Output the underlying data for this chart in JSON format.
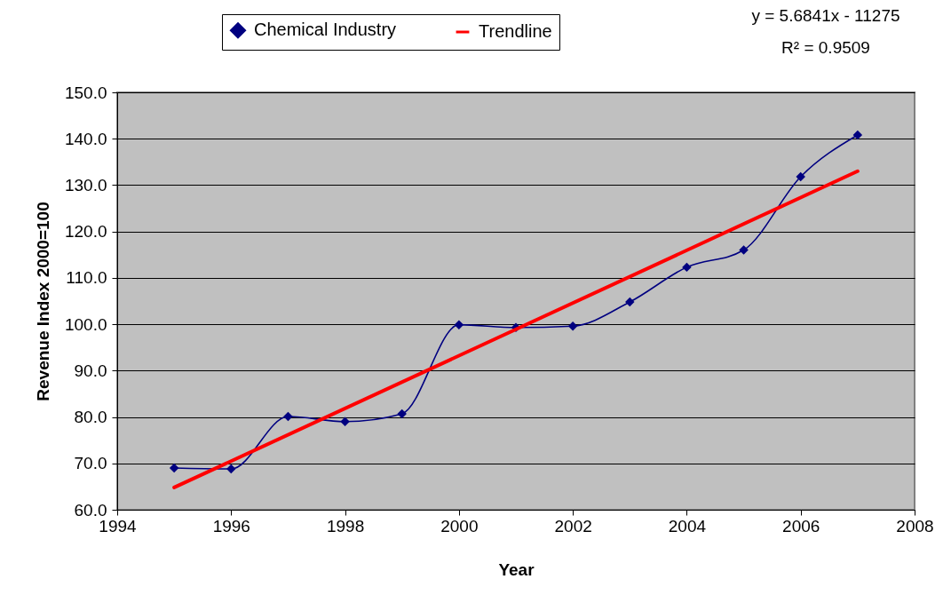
{
  "chart_data": {
    "type": "line",
    "xlabel": "Year",
    "ylabel": "Revenue Index 2000=100",
    "annotations": [
      "y = 5.6841x - 11275",
      "R² = 0.9509"
    ],
    "x": [
      1995,
      1996,
      1997,
      1998,
      1999,
      2000,
      2001,
      2002,
      2003,
      2004,
      2005,
      2006,
      2007
    ],
    "series": [
      {
        "name": "Chemical Industry",
        "color": "#000080",
        "values": [
          69.0,
          68.8,
          80.1,
          79.0,
          80.7,
          99.9,
          99.3,
          99.6,
          104.8,
          112.3,
          116.0,
          131.8,
          140.8
        ]
      },
      {
        "name": "Trendline",
        "color": "#ff0000",
        "type": "line",
        "marker": "none",
        "x": [
          1995,
          2007
        ],
        "values": [
          64.8,
          133.0
        ]
      }
    ],
    "xlim": [
      1994,
      2008
    ],
    "xticks": [
      1994,
      1996,
      1998,
      2000,
      2002,
      2004,
      2006,
      2008
    ],
    "ylim": [
      60,
      150
    ],
    "yticks": [
      {
        "value": 60,
        "label": "60.0"
      },
      {
        "value": 70,
        "label": "70.0"
      },
      {
        "value": 80,
        "label": "80.0"
      },
      {
        "value": 90,
        "label": "90.0"
      },
      {
        "value": 100,
        "label": "100.0"
      },
      {
        "value": 110,
        "label": "110.0"
      },
      {
        "value": 120,
        "label": "120.0"
      },
      {
        "value": 130,
        "label": "130.0"
      },
      {
        "value": 140,
        "label": "140.0"
      },
      {
        "value": 150,
        "label": "150.0"
      }
    ],
    "grid": "y",
    "legend": "top",
    "marker": "diamond",
    "line_style": "solid"
  }
}
